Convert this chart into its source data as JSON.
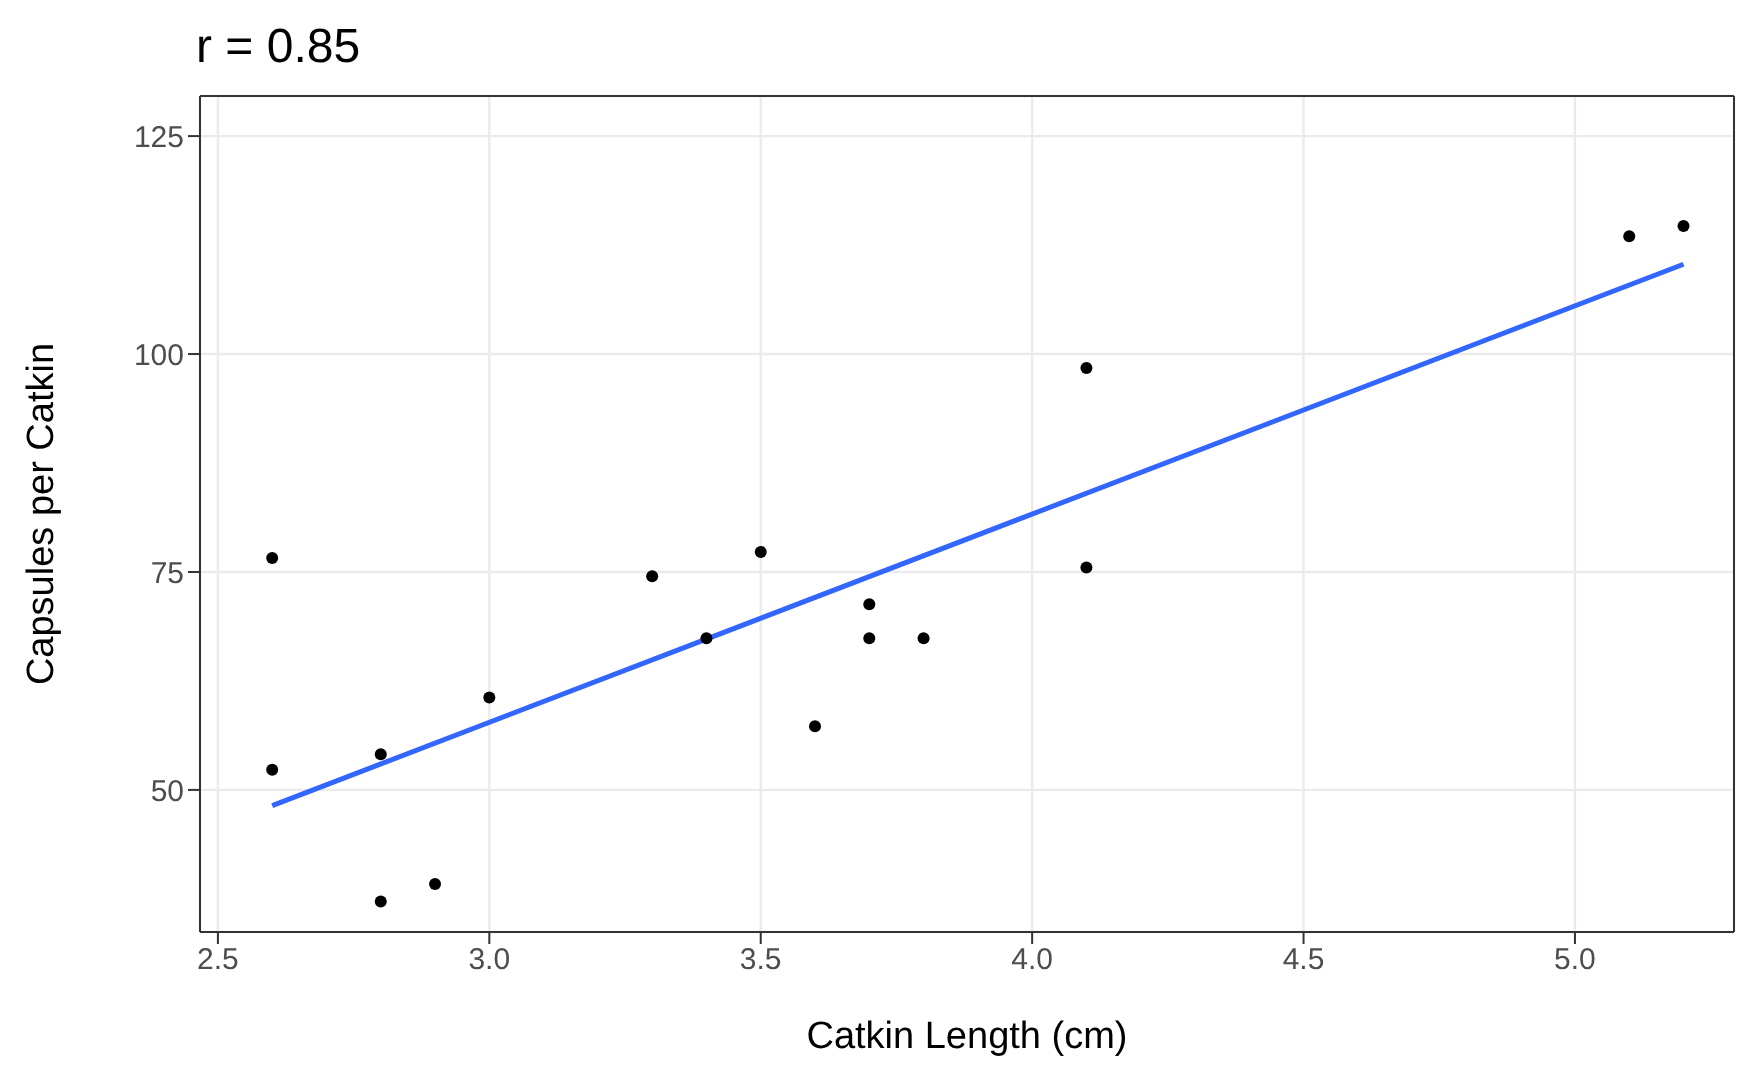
{
  "chart_data": {
    "type": "scatter",
    "title": "r = 0.85",
    "xlabel": "Catkin Length (cm)",
    "ylabel": "Capsules per Catkin",
    "xlim": [
      2.467,
      5.293
    ],
    "ylim": [
      33.7,
      129.6
    ],
    "xticks": [
      {
        "value": 2.5,
        "label": "2.5"
      },
      {
        "value": 3,
        "label": "3.0"
      },
      {
        "value": 3.5,
        "label": "3.5"
      },
      {
        "value": 4,
        "label": "4.0"
      },
      {
        "value": 4.5,
        "label": "4.5"
      },
      {
        "value": 5,
        "label": "5.0"
      }
    ],
    "yticks": [
      50,
      75,
      100,
      125
    ],
    "grid": true,
    "legend": false,
    "series": [
      {
        "marker": "circle",
        "color": "#000000",
        "x": [
          2.6,
          2.6,
          2.8,
          2.8,
          2.9,
          3.0,
          3.3,
          3.4,
          3.5,
          3.6,
          3.7,
          3.7,
          3.8,
          4.1,
          4.1,
          5.1,
          5.2
        ],
        "values": [
          76.6,
          52.3,
          54.1,
          37.2,
          39.2,
          60.6,
          74.5,
          67.4,
          77.3,
          57.3,
          71.3,
          67.4,
          67.4,
          98.4,
          75.5,
          113.5,
          114.7
        ]
      },
      {
        "type": "line",
        "marker": "none",
        "color": "#3366ff",
        "x": [
          2.6,
          5.2
        ],
        "values": [
          48.2,
          110.3
        ]
      }
    ]
  }
}
